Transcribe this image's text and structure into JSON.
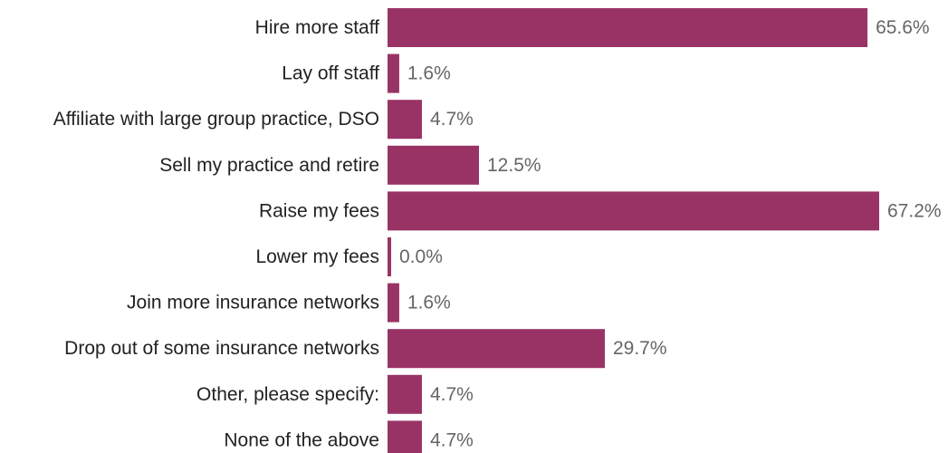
{
  "chart_data": {
    "type": "bar",
    "orientation": "horizontal",
    "categories": [
      "Hire more staff",
      "Lay off staff",
      "Affiliate with large group practice, DSO",
      "Sell my practice and retire",
      "Raise my fees",
      "Lower my fees",
      "Join more insurance networks",
      "Drop out of some insurance networks",
      "Other, please specify:",
      "None of the above"
    ],
    "values": [
      65.6,
      1.6,
      4.7,
      12.5,
      67.2,
      0.0,
      1.6,
      29.7,
      4.7,
      4.7
    ],
    "value_labels": [
      "65.6%",
      "1.6%",
      "4.7%",
      "12.5%",
      "67.2%",
      "0.0%",
      "1.6%",
      "29.7%",
      "4.7%",
      "4.7%"
    ],
    "title": "",
    "xlabel": "",
    "ylabel": "",
    "xlim": [
      0,
      67.2
    ],
    "grid": false,
    "legend": "none",
    "colors": {
      "bar": "#993366",
      "category_text": "#222222",
      "value_text": "#666666"
    }
  }
}
